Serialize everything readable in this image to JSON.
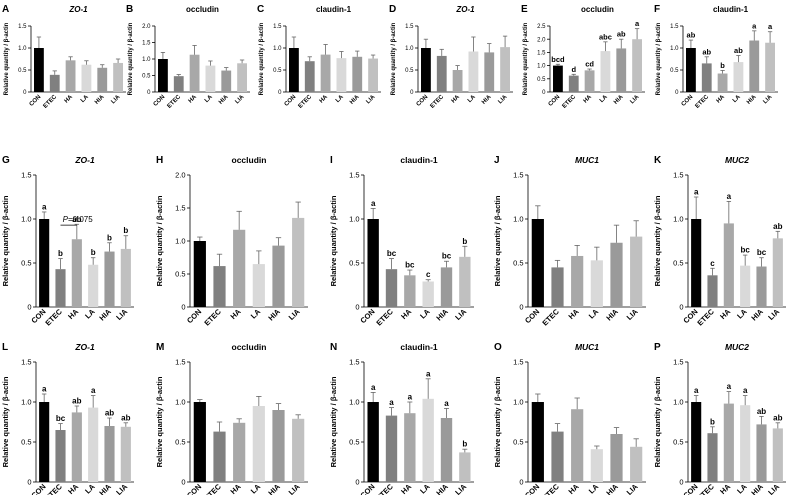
{
  "figure": {
    "description": "Relative mRNA expression of tight junction and mucin genes across treatment groups"
  },
  "chart_data": [
    {
      "type": "bar",
      "panel": "A",
      "title": "ZO-1",
      "title_italic": true,
      "ylabel": "Relative quantity / β-actin",
      "categories": [
        "CON",
        "ETEC",
        "HA",
        "LA",
        "HIA",
        "LIA"
      ],
      "values": [
        1.0,
        0.39,
        0.72,
        0.62,
        0.55,
        0.66
      ],
      "errors": [
        0.25,
        0.09,
        0.08,
        0.09,
        0.07,
        0.09
      ],
      "ylim": [
        0,
        1.5
      ],
      "yticks": [
        0,
        0.5,
        1.0,
        1.5
      ],
      "letters": []
    },
    {
      "type": "bar",
      "panel": "B",
      "title": "occludin",
      "title_italic": false,
      "ylabel": "Relative quantity / β-actin",
      "categories": [
        "CON",
        "ETEC",
        "HA",
        "LA",
        "HIA",
        "LIA"
      ],
      "values": [
        1.0,
        0.48,
        1.13,
        0.8,
        0.65,
        0.87
      ],
      "errors": [
        0.2,
        0.05,
        0.28,
        0.14,
        0.09,
        0.1
      ],
      "ylim": [
        0,
        2.0
      ],
      "yticks": [
        0,
        0.5,
        1.0,
        1.5,
        2.0
      ],
      "letters": []
    },
    {
      "type": "bar",
      "panel": "C",
      "title": "claudin-1",
      "title_italic": false,
      "ylabel": "Relative quantity / β-actin",
      "categories": [
        "CON",
        "ETEC",
        "HA",
        "LA",
        "HIA",
        "LIA"
      ],
      "values": [
        1.0,
        0.7,
        0.85,
        0.77,
        0.8,
        0.76
      ],
      "errors": [
        0.25,
        0.1,
        0.23,
        0.15,
        0.13,
        0.08
      ],
      "ylim": [
        0,
        1.5
      ],
      "yticks": [
        0,
        0.5,
        1.0,
        1.5
      ],
      "letters": []
    },
    {
      "type": "bar",
      "panel": "D",
      "title": "ZO-1",
      "title_italic": true,
      "ylabel": "Relative quantity / β-actin",
      "categories": [
        "CON",
        "ETEC",
        "HA",
        "LA",
        "HIA",
        "LIA"
      ],
      "values": [
        1.0,
        0.82,
        0.5,
        0.92,
        0.9,
        1.02
      ],
      "errors": [
        0.2,
        0.15,
        0.1,
        0.33,
        0.2,
        0.25
      ],
      "ylim": [
        0,
        1.5
      ],
      "yticks": [
        0,
        0.5,
        1.0,
        1.5
      ],
      "letters": []
    },
    {
      "type": "bar",
      "panel": "E",
      "title": "occludin",
      "title_italic": false,
      "ylabel": "Relative quantity / β-actin",
      "categories": [
        "CON",
        "ETEC",
        "HA",
        "LA",
        "HIA",
        "LIA"
      ],
      "values": [
        1.0,
        0.62,
        0.82,
        1.55,
        1.65,
        2.0
      ],
      "errors": [
        0.05,
        0.05,
        0.05,
        0.35,
        0.35,
        0.4
      ],
      "ylim": [
        0,
        2.5
      ],
      "yticks": [
        0,
        0.5,
        1.0,
        1.5,
        2.0,
        2.5
      ],
      "letters": [
        "bcd",
        "d",
        "cd",
        "abc",
        "ab",
        "a"
      ]
    },
    {
      "type": "bar",
      "panel": "F",
      "title": "claudin-1",
      "title_italic": false,
      "ylabel": "Relative quantity / β-actin",
      "categories": [
        "CON",
        "ETEC",
        "HA",
        "LA",
        "HIA",
        "LIA"
      ],
      "values": [
        1.0,
        0.65,
        0.42,
        0.68,
        1.17,
        1.12
      ],
      "errors": [
        0.18,
        0.15,
        0.07,
        0.15,
        0.22,
        0.25
      ],
      "ylim": [
        0,
        1.5
      ],
      "yticks": [
        0,
        0.5,
        1.0,
        1.5
      ],
      "letters": [
        "ab",
        "ab",
        "b",
        "ab",
        "a",
        "a"
      ]
    },
    {
      "type": "bar",
      "panel": "G",
      "title": "ZO-1",
      "title_italic": true,
      "ylabel": "Relative quantity / β-actin",
      "categories": [
        "CON",
        "ETEC",
        "HA",
        "LA",
        "HIA",
        "LIA"
      ],
      "values": [
        1.0,
        0.43,
        0.77,
        0.48,
        0.63,
        0.66
      ],
      "errors": [
        0.08,
        0.12,
        0.17,
        0.08,
        0.1,
        0.15
      ],
      "ylim": [
        0,
        1.5
      ],
      "yticks": [
        0,
        0.5,
        1.0,
        1.5
      ],
      "letters": [
        "a",
        "b",
        "ab",
        "b",
        "b",
        "b"
      ],
      "annotation": {
        "text": "=0.075",
        "italic_prefix": "P",
        "from_index": 1,
        "to_index": 2,
        "y": 0.93
      }
    },
    {
      "type": "bar",
      "panel": "H",
      "title": "occludin",
      "title_italic": false,
      "ylabel": "Relative quantity / β-actin",
      "categories": [
        "CON",
        "ETEC",
        "HA",
        "LA",
        "HIA",
        "LIA"
      ],
      "values": [
        1.0,
        0.62,
        1.17,
        0.65,
        0.93,
        1.35
      ],
      "errors": [
        0.06,
        0.18,
        0.28,
        0.2,
        0.12,
        0.24
      ],
      "ylim": [
        0,
        2.0
      ],
      "yticks": [
        0,
        0.5,
        1.0,
        1.5,
        2.0
      ],
      "letters": []
    },
    {
      "type": "bar",
      "panel": "I",
      "title": "claudin-1",
      "title_italic": false,
      "ylabel": "Relative quantity / β-actin",
      "categories": [
        "CON",
        "ETEC",
        "HA",
        "LA",
        "HIA",
        "LIA"
      ],
      "values": [
        1.0,
        0.43,
        0.36,
        0.29,
        0.45,
        0.57
      ],
      "errors": [
        0.12,
        0.12,
        0.06,
        0.02,
        0.07,
        0.12
      ],
      "ylim": [
        0,
        1.5
      ],
      "yticks": [
        0,
        0.5,
        1.0,
        1.5
      ],
      "letters": [
        "a",
        "bc",
        "bc",
        "c",
        "bc",
        "b"
      ]
    },
    {
      "type": "bar",
      "panel": "J",
      "title": "MUC1",
      "title_italic": true,
      "ylabel": "Relative quantity / β-actin",
      "categories": [
        "CON",
        "ETEC",
        "HA",
        "LA",
        "HIA",
        "LIA"
      ],
      "values": [
        1.0,
        0.45,
        0.58,
        0.53,
        0.73,
        0.8
      ],
      "errors": [
        0.15,
        0.08,
        0.12,
        0.15,
        0.2,
        0.18
      ],
      "ylim": [
        0,
        1.5
      ],
      "yticks": [
        0,
        0.5,
        1.0,
        1.5
      ],
      "letters": []
    },
    {
      "type": "bar",
      "panel": "K",
      "title": "MUC2",
      "title_italic": true,
      "ylabel": "Relative quantity / β-actin",
      "categories": [
        "CON",
        "ETEC",
        "HA",
        "LA",
        "HIA",
        "LIA"
      ],
      "values": [
        1.0,
        0.36,
        0.95,
        0.47,
        0.46,
        0.78
      ],
      "errors": [
        0.25,
        0.08,
        0.25,
        0.12,
        0.1,
        0.08
      ],
      "ylim": [
        0,
        1.5
      ],
      "yticks": [
        0,
        0.5,
        1.0,
        1.5
      ],
      "letters": [
        "a",
        "c",
        "a",
        "bc",
        "bc",
        "ab"
      ]
    },
    {
      "type": "bar",
      "panel": "L",
      "title": "ZO-1",
      "title_italic": true,
      "ylabel": "Relative quantity / β-actin",
      "categories": [
        "CON",
        "ETEC",
        "HA",
        "LA",
        "HIA",
        "LIA"
      ],
      "values": [
        1.0,
        0.65,
        0.87,
        0.93,
        0.7,
        0.69
      ],
      "errors": [
        0.1,
        0.08,
        0.08,
        0.15,
        0.1,
        0.05
      ],
      "ylim": [
        0,
        1.5
      ],
      "yticks": [
        0,
        0.5,
        1.0,
        1.5
      ],
      "letters": [
        "a",
        "bc",
        "ab",
        "a",
        "ab",
        "ab"
      ]
    },
    {
      "type": "bar",
      "panel": "M",
      "title": "occludin",
      "title_italic": false,
      "ylabel": "Relative quantity / β-actin",
      "categories": [
        "CON",
        "ETEC",
        "HA",
        "LA",
        "HIA",
        "LIA"
      ],
      "values": [
        1.0,
        0.63,
        0.74,
        0.95,
        0.9,
        0.79
      ],
      "errors": [
        0.03,
        0.12,
        0.05,
        0.12,
        0.08,
        0.05
      ],
      "ylim": [
        0,
        1.5
      ],
      "yticks": [
        0,
        0.5,
        1.0,
        1.5
      ],
      "letters": []
    },
    {
      "type": "bar",
      "panel": "N",
      "title": "claudin-1",
      "title_italic": false,
      "ylabel": "Relative quantity / β-actin",
      "categories": [
        "CON",
        "ETEC",
        "HA",
        "LA",
        "HIA",
        "LIA"
      ],
      "values": [
        1.0,
        0.83,
        0.86,
        1.04,
        0.8,
        0.37
      ],
      "errors": [
        0.12,
        0.1,
        0.14,
        0.25,
        0.12,
        0.04
      ],
      "ylim": [
        0,
        1.5
      ],
      "yticks": [
        0,
        0.5,
        1.0,
        1.5
      ],
      "letters": [
        "a",
        "a",
        "a",
        "a",
        "a",
        "b"
      ]
    },
    {
      "type": "bar",
      "panel": "O",
      "title": "MUC1",
      "title_italic": true,
      "ylabel": "Relative quantity / β-actin",
      "categories": [
        "CON",
        "ETEC",
        "HA",
        "LA",
        "HIA",
        "LIA"
      ],
      "values": [
        1.0,
        0.63,
        0.91,
        0.41,
        0.6,
        0.44
      ],
      "errors": [
        0.1,
        0.1,
        0.14,
        0.04,
        0.08,
        0.1
      ],
      "ylim": [
        0,
        1.5
      ],
      "yticks": [
        0,
        0.5,
        1.0,
        1.5
      ],
      "letters": []
    },
    {
      "type": "bar",
      "panel": "P",
      "title": "MUC2",
      "title_italic": true,
      "ylabel": "Relative quantity / β-actin",
      "categories": [
        "CON",
        "ETEC",
        "HA",
        "LA",
        "HIA",
        "LIA"
      ],
      "values": [
        1.0,
        0.61,
        0.98,
        0.96,
        0.72,
        0.67
      ],
      "errors": [
        0.08,
        0.08,
        0.15,
        0.12,
        0.1,
        0.07
      ],
      "ylim": [
        0,
        1.5
      ],
      "yticks": [
        0,
        0.5,
        1.0,
        1.5
      ],
      "letters": [
        "a",
        "b",
        "a",
        "a",
        "ab",
        "ab"
      ]
    }
  ],
  "colors": {
    "bar_fill": [
      "#000000",
      "#808080",
      "#a8a8a8",
      "#d9d9d9",
      "#9a9a9a",
      "#c0c0c0"
    ],
    "error_bar": "#666666",
    "axis": "#000000",
    "text": "#000000"
  }
}
